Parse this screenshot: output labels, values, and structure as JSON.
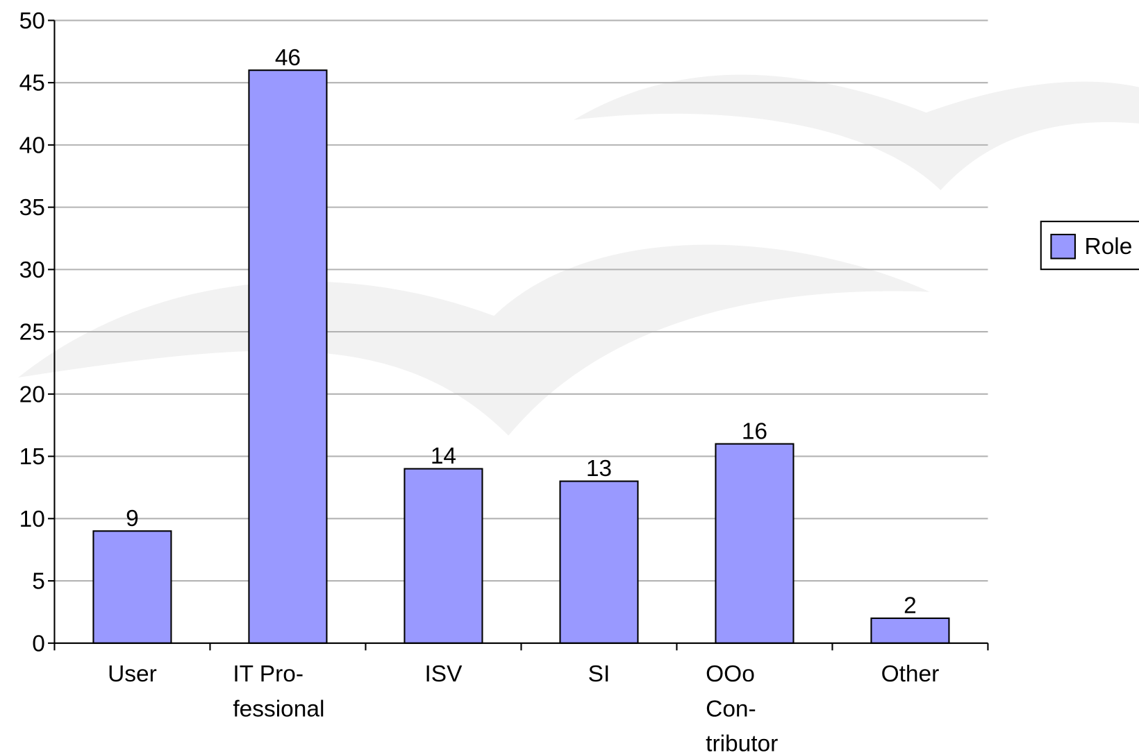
{
  "chart_data": {
    "type": "bar",
    "categories": [
      [
        "User"
      ],
      [
        "IT Pro-",
        "fessional"
      ],
      [
        "ISV"
      ],
      [
        "SI"
      ],
      [
        "OOo",
        "Con-",
        "tributor"
      ],
      [
        "Other"
      ]
    ],
    "series": [
      {
        "name": "Role",
        "color": "#9999ff",
        "values": [
          9,
          46,
          14,
          13,
          16,
          2
        ]
      }
    ],
    "ylim": [
      0,
      50
    ],
    "yticks": [
      0,
      5,
      10,
      15,
      20,
      25,
      30,
      35,
      40,
      45,
      50
    ],
    "grid": true,
    "legend": "right"
  }
}
